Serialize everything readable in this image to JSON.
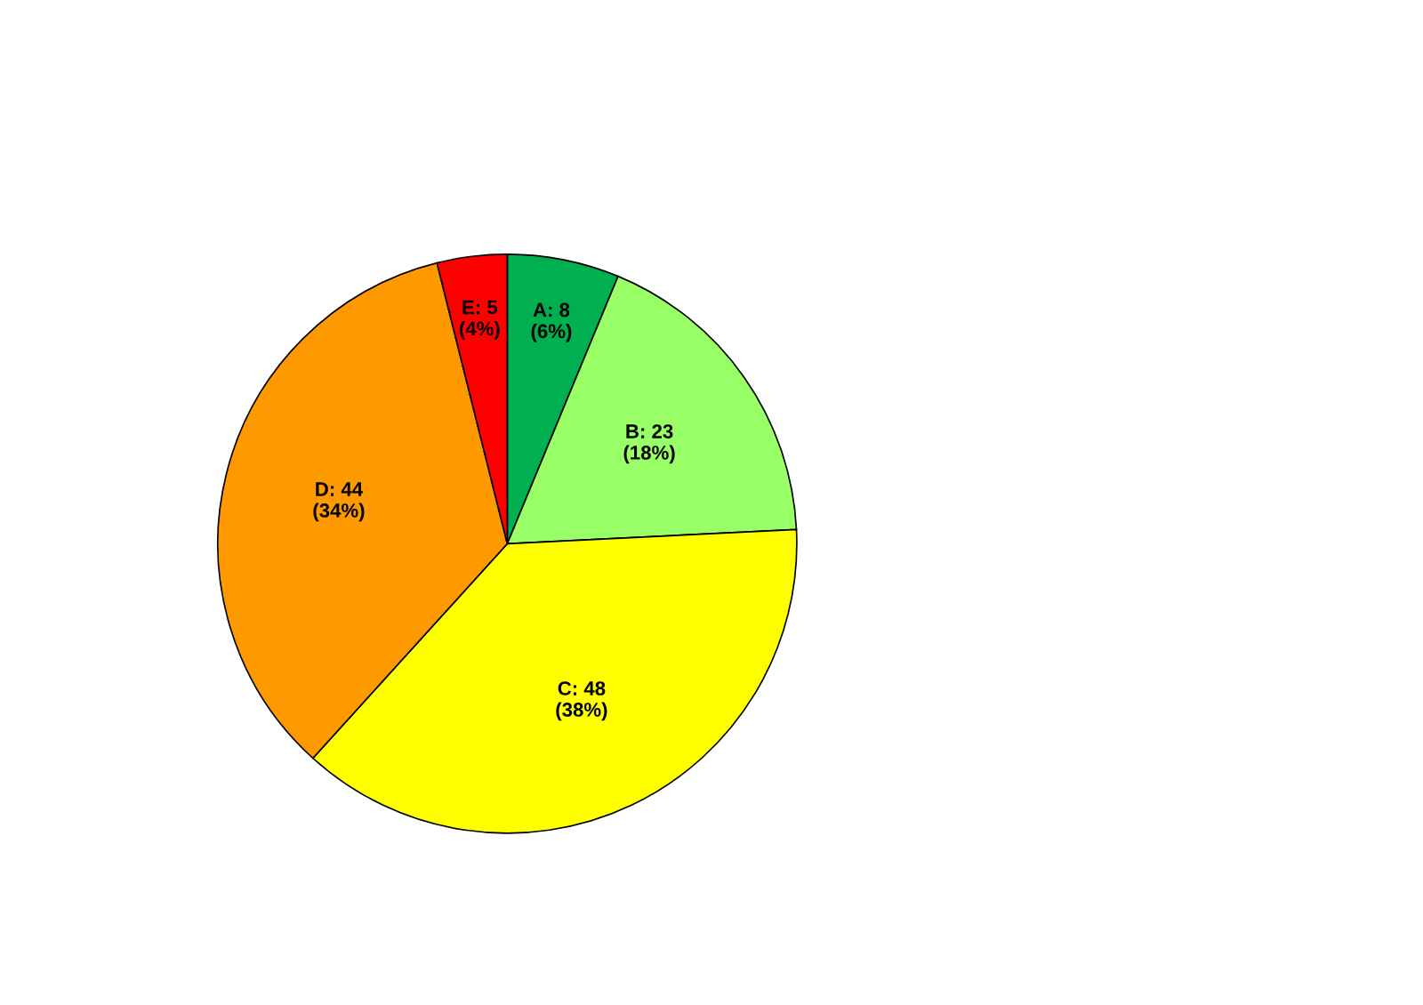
{
  "chart_data": {
    "type": "pie",
    "categories": [
      "A: 8\n(6%)",
      "B: 23\n(18%)",
      "C: 48\n(38%)",
      "D: 44\n(34%)",
      "E: 5\n(4%)"
    ],
    "values": [
      8,
      23,
      48,
      44,
      5
    ],
    "colors": [
      "#00b050",
      "#99ff66",
      "#ffff00",
      "#ff9900",
      "#ff0000"
    ]
  }
}
